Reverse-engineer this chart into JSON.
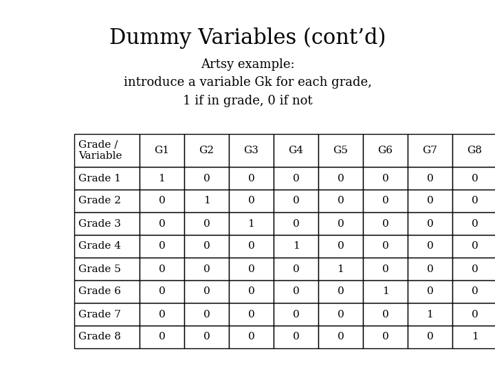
{
  "title": "Dummy Variables (cont’d)",
  "subtitle": "Artsy example:\nintroduce a variable Gk for each grade,\n1 if in grade, 0 if not",
  "col_headers": [
    "Grade /\nVariable",
    "G1",
    "G2",
    "G3",
    "G4",
    "G5",
    "G6",
    "G7",
    "G8"
  ],
  "row_labels": [
    "Grade 1",
    "Grade 2",
    "Grade 3",
    "Grade 4",
    "Grade 5",
    "Grade 6",
    "Grade 7",
    "Grade 8"
  ],
  "table_data": [
    [
      1,
      0,
      0,
      0,
      0,
      0,
      0,
      0
    ],
    [
      0,
      1,
      0,
      0,
      0,
      0,
      0,
      0
    ],
    [
      0,
      0,
      1,
      0,
      0,
      0,
      0,
      0
    ],
    [
      0,
      0,
      0,
      1,
      0,
      0,
      0,
      0
    ],
    [
      0,
      0,
      0,
      0,
      1,
      0,
      0,
      0
    ],
    [
      0,
      0,
      0,
      0,
      0,
      1,
      0,
      0
    ],
    [
      0,
      0,
      0,
      0,
      0,
      0,
      1,
      0
    ],
    [
      0,
      0,
      0,
      0,
      0,
      0,
      0,
      1
    ]
  ],
  "background_color": "#ffffff",
  "text_color": "#000000",
  "title_fontsize": 22,
  "subtitle_fontsize": 13,
  "table_fontsize": 11,
  "font_family": "DejaVu Serif"
}
